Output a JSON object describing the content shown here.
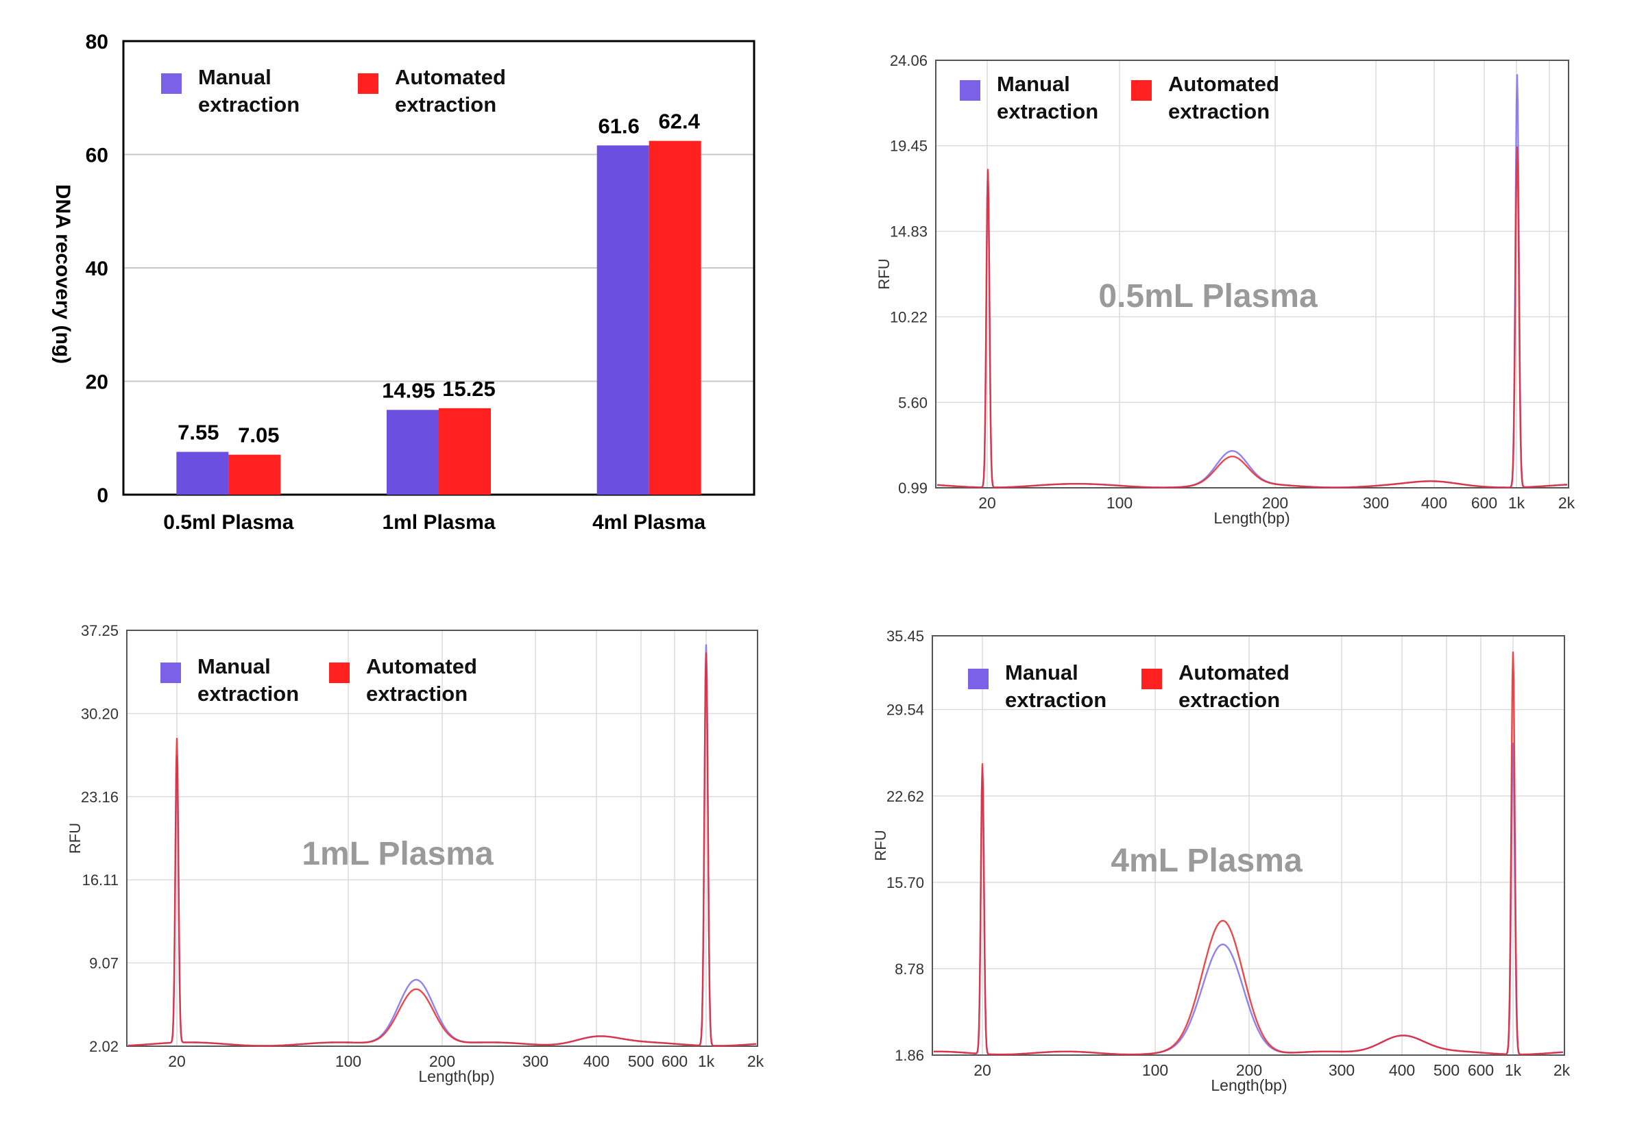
{
  "colors": {
    "manual": "#6b4fe0",
    "automated": "#ff2020",
    "grid": "#d9d9d9",
    "watermark": "#9a9a9a"
  },
  "legend": {
    "manual": "Manual extraction",
    "automated": "Automated extraction"
  },
  "chart_data": [
    {
      "type": "bar",
      "ylabel": "DNA recovery (ng)",
      "ylim": [
        0,
        80
      ],
      "yticks": [
        0,
        20,
        40,
        60,
        80
      ],
      "categories": [
        "0.5ml Plasma",
        "1ml Plasma",
        "4ml Plasma"
      ],
      "series": [
        {
          "name": "Manual extraction",
          "values": [
            7.55,
            14.95,
            61.6
          ],
          "labels": [
            "7.55",
            "14.95",
            "61.6"
          ]
        },
        {
          "name": "Automated extraction",
          "values": [
            7.05,
            15.25,
            62.4
          ],
          "labels": [
            "7.05",
            "15.25",
            "62.4"
          ]
        }
      ],
      "grid": true,
      "legend_position": "top-left"
    },
    {
      "type": "line",
      "annotation": "0.5mL Plasma",
      "ylabel": "RFU",
      "xlabel": "Length(bp)",
      "yticks": [
        "0.99",
        "5.60",
        "10.22",
        "14.83",
        "19.45",
        "24.06"
      ],
      "ylim": [
        0.99,
        24.06
      ],
      "xticks": [
        "20",
        "100",
        "200",
        "300",
        "400",
        "600",
        "1k",
        "2k"
      ],
      "x_scale": "log",
      "series": [
        {
          "name": "Manual extraction",
          "peaks": {
            "marker_20": 18.2,
            "broad_peak_165bp": 2.9,
            "marker_1k": 23.4
          }
        },
        {
          "name": "Automated extraction",
          "peaks": {
            "marker_20": 18.3,
            "broad_peak_165bp": 2.6,
            "marker_1k": 19.5
          }
        }
      ],
      "grid": true,
      "legend_position": "top-left"
    },
    {
      "type": "line",
      "annotation": "1mL Plasma",
      "ylabel": "RFU",
      "xlabel": "Length(bp)",
      "yticks": [
        "2.02",
        "9.07",
        "16.11",
        "23.16",
        "30.20",
        "37.25"
      ],
      "ylim": [
        2.02,
        37.25
      ],
      "xticks": [
        "20",
        "100",
        "200",
        "300",
        "400",
        "500",
        "600",
        "1k",
        "2k"
      ],
      "x_scale": "log",
      "series": [
        {
          "name": "Manual extraction",
          "peaks": {
            "marker_20": 26.5,
            "broad_peak_165bp": 7.8,
            "marker_1k": 36.2
          }
        },
        {
          "name": "Automated extraction",
          "peaks": {
            "marker_20": 28.0,
            "broad_peak_165bp": 7.0,
            "marker_1k": 35.5
          }
        }
      ],
      "grid": true,
      "legend_position": "top-left"
    },
    {
      "type": "line",
      "annotation": "4mL Plasma",
      "ylabel": "RFU",
      "xlabel": "Length(bp)",
      "yticks": [
        "1.86",
        "8.78",
        "15.70",
        "22.62",
        "29.54",
        "35.45"
      ],
      "ylim": [
        1.86,
        35.45
      ],
      "xticks": [
        "20",
        "100",
        "200",
        "300",
        "400",
        "500",
        "600",
        "1k",
        "2k"
      ],
      "x_scale": "log",
      "series": [
        {
          "name": "Manual extraction",
          "peaks": {
            "marker_20": 25.0,
            "broad_peak_165bp": 10.7,
            "marker_1k": 27.0
          }
        },
        {
          "name": "Automated extraction",
          "peaks": {
            "marker_20": 25.3,
            "broad_peak_165bp": 12.6,
            "marker_1k": 34.3
          }
        }
      ],
      "grid": true,
      "legend_position": "top-left"
    }
  ]
}
